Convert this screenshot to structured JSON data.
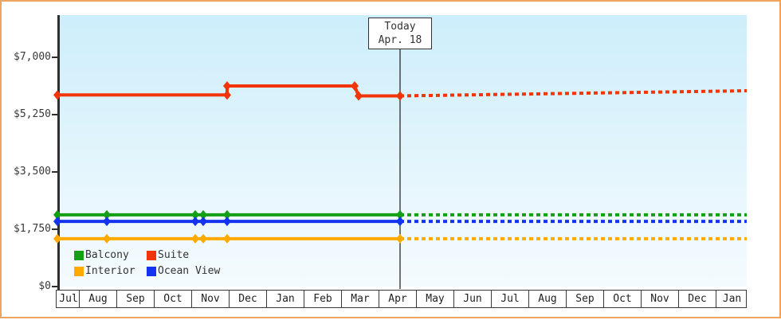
{
  "window": {
    "border_color": "#efa55f",
    "background_color": "#ffffff",
    "plot_bg_top": "#cdeefb",
    "plot_bg_bottom": "#f4fbfe"
  },
  "chart_data": {
    "type": "line",
    "title": "",
    "xlabel": "",
    "ylabel": "",
    "grid": false,
    "legend_position": "bottom-left-inside",
    "ylim": [
      0,
      8250
    ],
    "y_axis": {
      "max_tick_value": 7000,
      "ticks": [
        {
          "label": "$0",
          "value": 0
        },
        {
          "label": "$1,750",
          "value": 1750
        },
        {
          "label": "$3,500",
          "value": 3500
        },
        {
          "label": "$5,250",
          "value": 5250
        },
        {
          "label": "$7,000",
          "value": 7000
        }
      ]
    },
    "x_axis": {
      "months": [
        "Jul",
        "Aug",
        "Sep",
        "Oct",
        "Nov",
        "Dec",
        "Jan",
        "Feb",
        "Mar",
        "Apr",
        "May",
        "Jun",
        "Jul",
        "Aug",
        "Sep",
        "Oct",
        "Nov",
        "Dec",
        "Jan"
      ]
    },
    "today_marker": {
      "line1": "Today",
      "line2": "Apr. 18",
      "x_frac": 0.4971
    },
    "series": [
      {
        "name": "Balcony",
        "color": "#14a014",
        "solid_points": [
          {
            "x": 0.0,
            "v": 2190
          },
          {
            "x": 0.0717,
            "v": 2190
          },
          {
            "x": 0.2,
            "v": 2190
          },
          {
            "x": 0.2116,
            "v": 2190
          },
          {
            "x": 0.2462,
            "v": 2190
          },
          {
            "x": 0.4971,
            "v": 2190
          }
        ],
        "dashed_points": [
          {
            "x": 0.4971,
            "v": 2190
          },
          {
            "x": 1.0,
            "v": 2190
          }
        ]
      },
      {
        "name": "Suite",
        "color": "#f13508",
        "solid_points": [
          {
            "x": 0.0,
            "v": 5850
          },
          {
            "x": 0.2462,
            "v": 5850
          },
          {
            "x": 0.2462,
            "v": 6125
          },
          {
            "x": 0.4312,
            "v": 6125
          },
          {
            "x": 0.437,
            "v": 5820
          },
          {
            "x": 0.4971,
            "v": 5820
          }
        ],
        "dashed_points": [
          {
            "x": 0.4971,
            "v": 5820
          },
          {
            "x": 1.0,
            "v": 5980
          }
        ]
      },
      {
        "name": "Interior",
        "color": "#ffaa00",
        "solid_points": [
          {
            "x": 0.0,
            "v": 1460
          },
          {
            "x": 0.0717,
            "v": 1460
          },
          {
            "x": 0.2,
            "v": 1460
          },
          {
            "x": 0.2116,
            "v": 1460
          },
          {
            "x": 0.2462,
            "v": 1460
          },
          {
            "x": 0.4971,
            "v": 1460
          }
        ],
        "dashed_points": [
          {
            "x": 0.4971,
            "v": 1460
          },
          {
            "x": 1.0,
            "v": 1460
          }
        ]
      },
      {
        "name": "Ocean View",
        "color": "#1433f0",
        "solid_points": [
          {
            "x": 0.0,
            "v": 1990
          },
          {
            "x": 0.0717,
            "v": 1990
          },
          {
            "x": 0.2,
            "v": 1990
          },
          {
            "x": 0.2116,
            "v": 1990
          },
          {
            "x": 0.2462,
            "v": 1990
          },
          {
            "x": 0.4971,
            "v": 1990
          }
        ],
        "dashed_points": [
          {
            "x": 0.4971,
            "v": 1990
          },
          {
            "x": 1.0,
            "v": 1990
          }
        ]
      }
    ],
    "legend": {
      "items": [
        {
          "label": "Balcony",
          "color": "#14a014"
        },
        {
          "label": "Suite",
          "color": "#f13508"
        },
        {
          "label": "Interior",
          "color": "#ffaa00"
        },
        {
          "label": "Ocean View",
          "color": "#1433f0"
        }
      ]
    }
  }
}
